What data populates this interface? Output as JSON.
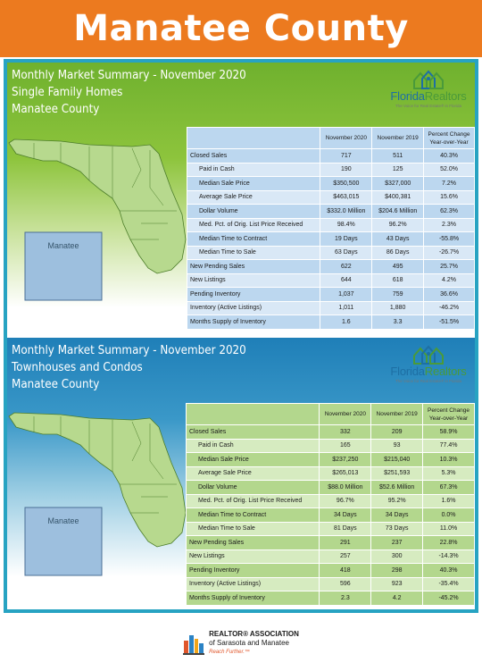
{
  "banner": {
    "title": "Manatee County"
  },
  "logo": {
    "name_part1": "Florida",
    "name_part2": "Realtors",
    "tagline": "The Voice for Real Estate® in Florida"
  },
  "table_headers": {
    "col1": "November 2020",
    "col2": "November 2019",
    "col3_line1": "Percent Change",
    "col3_line2": "Year-over-Year"
  },
  "single_family": {
    "title_line1": "Monthly Market Summary - November 2020",
    "title_line2": "Single Family Homes",
    "title_line3": "Manatee County",
    "map_label": "Manatee",
    "rows": [
      {
        "label": "Closed Sales",
        "v2020": "717",
        "v2019": "511",
        "change": "40.3%"
      },
      {
        "label": "Paid in Cash",
        "v2020": "190",
        "v2019": "125",
        "change": "52.0%"
      },
      {
        "label": "Median Sale Price",
        "v2020": "$350,500",
        "v2019": "$327,000",
        "change": "7.2%"
      },
      {
        "label": "Average Sale Price",
        "v2020": "$463,015",
        "v2019": "$400,381",
        "change": "15.6%"
      },
      {
        "label": "Dollar Volume",
        "v2020": "$332.0 Million",
        "v2019": "$204.6 Million",
        "change": "62.3%"
      },
      {
        "label": "Med. Pct. of Orig. List Price Received",
        "v2020": "98.4%",
        "v2019": "96.2%",
        "change": "2.3%"
      },
      {
        "label": "Median Time to Contract",
        "v2020": "19 Days",
        "v2019": "43 Days",
        "change": "-55.8%"
      },
      {
        "label": "Median Time to Sale",
        "v2020": "63 Days",
        "v2019": "86 Days",
        "change": "-26.7%"
      },
      {
        "label": "New Pending Sales",
        "v2020": "622",
        "v2019": "495",
        "change": "25.7%"
      },
      {
        "label": "New Listings",
        "v2020": "644",
        "v2019": "618",
        "change": "4.2%"
      },
      {
        "label": "Pending Inventory",
        "v2020": "1,037",
        "v2019": "759",
        "change": "36.6%"
      },
      {
        "label": "Inventory (Active Listings)",
        "v2020": "1,011",
        "v2019": "1,880",
        "change": "-46.2%"
      },
      {
        "label": "Months Supply of Inventory",
        "v2020": "1.6",
        "v2019": "3.3",
        "change": "-51.5%"
      }
    ]
  },
  "townhouses": {
    "title_line1": "Monthly Market Summary - November 2020",
    "title_line2": "Townhouses and Condos",
    "title_line3": "Manatee County",
    "map_label": "Manatee",
    "rows": [
      {
        "label": "Closed Sales",
        "v2020": "332",
        "v2019": "209",
        "change": "58.9%"
      },
      {
        "label": "Paid in Cash",
        "v2020": "165",
        "v2019": "93",
        "change": "77.4%"
      },
      {
        "label": "Median Sale Price",
        "v2020": "$237,250",
        "v2019": "$215,040",
        "change": "10.3%"
      },
      {
        "label": "Average Sale Price",
        "v2020": "$265,013",
        "v2019": "$251,593",
        "change": "5.3%"
      },
      {
        "label": "Dollar Volume",
        "v2020": "$88.0 Million",
        "v2019": "$52.6 Million",
        "change": "67.3%"
      },
      {
        "label": "Med. Pct. of Orig. List Price Received",
        "v2020": "96.7%",
        "v2019": "95.2%",
        "change": "1.6%"
      },
      {
        "label": "Median Time to Contract",
        "v2020": "34 Days",
        "v2019": "34 Days",
        "change": "0.0%"
      },
      {
        "label": "Median Time to Sale",
        "v2020": "81 Days",
        "v2019": "73 Days",
        "change": "11.0%"
      },
      {
        "label": "New Pending Sales",
        "v2020": "291",
        "v2019": "237",
        "change": "22.8%"
      },
      {
        "label": "New Listings",
        "v2020": "257",
        "v2019": "300",
        "change": "-14.3%"
      },
      {
        "label": "Pending Inventory",
        "v2020": "418",
        "v2019": "298",
        "change": "40.3%"
      },
      {
        "label": "Inventory (Active Listings)",
        "v2020": "596",
        "v2019": "923",
        "change": "-35.4%"
      },
      {
        "label": "Months Supply of Inventory",
        "v2020": "2.3",
        "v2019": "4.2",
        "change": "-45.2%"
      }
    ]
  },
  "footer": {
    "line1": "REALTOR® ASSOCIATION",
    "line2": "of Sarasota and Manatee",
    "line3": "Reach Further.™"
  }
}
